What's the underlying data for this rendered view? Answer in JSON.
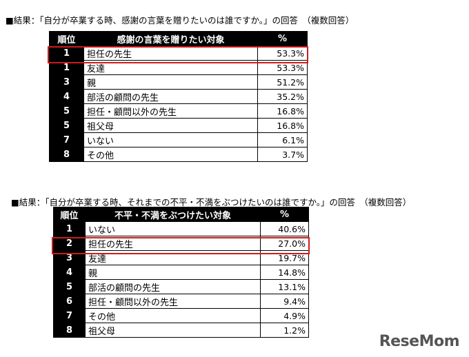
{
  "table1": {
    "caption": "■結果：「自分が卒業する時、感謝の言葉を贈りたいのは誰ですか。」の回答　（複数回答）",
    "headers": {
      "rank": "順位",
      "target": "感謝の言葉を贈りたい対象",
      "pct": "%"
    },
    "rows": [
      {
        "rank": "1",
        "target": "担任の先生",
        "pct": "53.3%"
      },
      {
        "rank": "1",
        "target": "友達",
        "pct": "53.3%"
      },
      {
        "rank": "3",
        "target": "親",
        "pct": "51.2%"
      },
      {
        "rank": "4",
        "target": "部活の顧問の先生",
        "pct": "35.2%"
      },
      {
        "rank": "5",
        "target": "担任・顧問以外の先生",
        "pct": "16.8%"
      },
      {
        "rank": "5",
        "target": "祖父母",
        "pct": "16.8%"
      },
      {
        "rank": "7",
        "target": "いない",
        "pct": "6.1%"
      },
      {
        "rank": "8",
        "target": "その他",
        "pct": "3.7%"
      }
    ]
  },
  "table2": {
    "caption": "■結果：「自分が卒業する時、それまでの不平・不満をぶつけたいのは誰ですか。」の回答　（複数回答）",
    "headers": {
      "rank": "順位",
      "target": "不平・不満をぶつけたい対象",
      "pct": "%"
    },
    "rows": [
      {
        "rank": "1",
        "target": "いない",
        "pct": "40.6%"
      },
      {
        "rank": "2",
        "target": "担任の先生",
        "pct": "27.0%"
      },
      {
        "rank": "3",
        "target": "友達",
        "pct": "19.7%"
      },
      {
        "rank": "4",
        "target": "親",
        "pct": "14.8%"
      },
      {
        "rank": "5",
        "target": "部活の顧問の先生",
        "pct": "13.1%"
      },
      {
        "rank": "6",
        "target": "担任・顧問以外の先生",
        "pct": "9.4%"
      },
      {
        "rank": "7",
        "target": "その他",
        "pct": "4.9%"
      },
      {
        "rank": "8",
        "target": "祖父母",
        "pct": "1.2%"
      }
    ]
  },
  "highlight_color": "#d01b1b",
  "logo": {
    "text": "ReseMom"
  }
}
